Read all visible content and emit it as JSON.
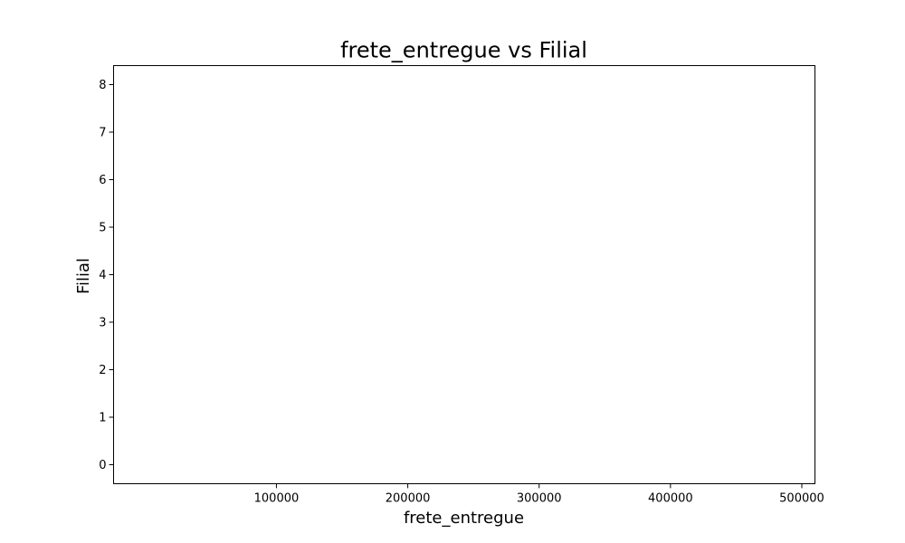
{
  "chart_data": {
    "type": "scatter",
    "title": "frete_entregue vs Filial",
    "xlabel": "frete_entregue",
    "ylabel": "Filial",
    "xlim": [
      -24000,
      510000
    ],
    "ylim": [
      -0.4,
      8.4
    ],
    "xticks": [
      {
        "value": 100000,
        "label": "100000"
      },
      {
        "value": 200000,
        "label": "200000"
      },
      {
        "value": 300000,
        "label": "300000"
      },
      {
        "value": 400000,
        "label": "400000"
      },
      {
        "value": 500000,
        "label": "500000"
      }
    ],
    "yticks": [
      {
        "value": 0,
        "label": "0"
      },
      {
        "value": 1,
        "label": "1"
      },
      {
        "value": 2,
        "label": "2"
      },
      {
        "value": 3,
        "label": "3"
      },
      {
        "value": 4,
        "label": "4"
      },
      {
        "value": 5,
        "label": "5"
      },
      {
        "value": 6,
        "label": "6"
      },
      {
        "value": 7,
        "label": "7"
      },
      {
        "value": 8,
        "label": "8"
      }
    ],
    "series": [
      {
        "x": [],
        "y": []
      }
    ],
    "grid": false,
    "legend": false
  }
}
